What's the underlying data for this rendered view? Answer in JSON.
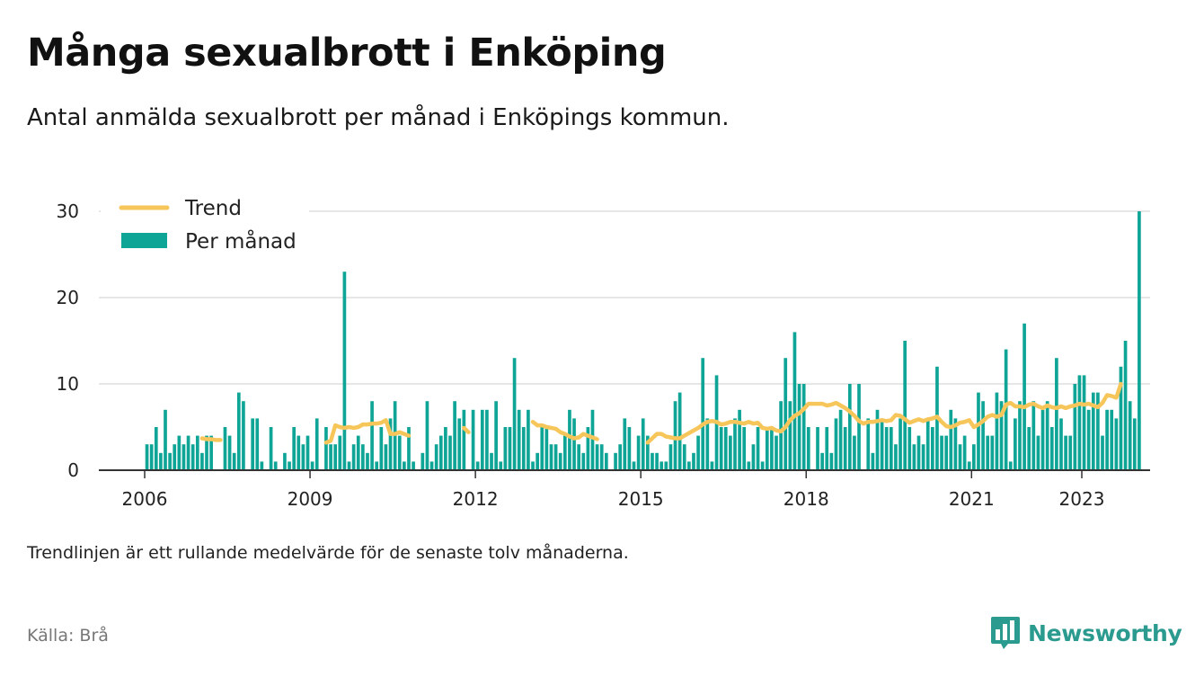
{
  "title": "Många sexualbrott i Enköping",
  "subtitle": "Antal anmälda sexualbrott per månad i Enköpings kommun.",
  "note": "Trendlinjen är ett rullande medelvärde för de senaste tolv månaderna.",
  "source": "Källa: Brå",
  "brand": {
    "name": "Newsworthy",
    "color": "#2b9a8f",
    "icon": "bar-chart-speech-bubble-icon"
  },
  "colors": {
    "bar": "#0fa596",
    "trend": "#f7c65a",
    "grid": "#dddddd",
    "axis": "#333333"
  },
  "chart_data": {
    "type": "bar",
    "start": "2006-01",
    "x_ticks": [
      "2006",
      "2009",
      "2012",
      "2015",
      "2018",
      "2021",
      "2023"
    ],
    "y_ticks": [
      0,
      10,
      20,
      30
    ],
    "ylim": [
      0,
      30
    ],
    "grid": true,
    "legend_position": "top-left",
    "series": [
      {
        "name": "Per månad",
        "type": "bar",
        "values": [
          3,
          3,
          5,
          2,
          7,
          2,
          3,
          4,
          3,
          4,
          3,
          4,
          2,
          4,
          4,
          0,
          0,
          5,
          4,
          2,
          9,
          8,
          0,
          6,
          6,
          1,
          0,
          5,
          1,
          0,
          2,
          1,
          5,
          4,
          3,
          4,
          1,
          6,
          0,
          5,
          3,
          3,
          4,
          23,
          1,
          3,
          4,
          3,
          2,
          8,
          1,
          5,
          3,
          6,
          8,
          4,
          1,
          5,
          1,
          0,
          2,
          8,
          1,
          3,
          4,
          5,
          4,
          8,
          6,
          7,
          0,
          7,
          1,
          7,
          7,
          2,
          8,
          1,
          5,
          5,
          13,
          7,
          5,
          7,
          1,
          2,
          5,
          5,
          3,
          3,
          2,
          4,
          7,
          6,
          3,
          2,
          5,
          7,
          3,
          3,
          2,
          0,
          2,
          3,
          6,
          5,
          1,
          4,
          6,
          4,
          2,
          2,
          1,
          1,
          3,
          8,
          9,
          3,
          1,
          2,
          4,
          13,
          6,
          1,
          11,
          5,
          5,
          4,
          6,
          7,
          5,
          1,
          3,
          5,
          1,
          5,
          5,
          4,
          8,
          13,
          8,
          16,
          10,
          10,
          5,
          0,
          5,
          2,
          5,
          2,
          6,
          7,
          5,
          10,
          4,
          10,
          0,
          6,
          2,
          7,
          6,
          5,
          5,
          3,
          6,
          15,
          5,
          3,
          4,
          3,
          6,
          5,
          12,
          4,
          4,
          7,
          6,
          3,
          4,
          1,
          3,
          9,
          8,
          4,
          4,
          9,
          8,
          14,
          1,
          6,
          8,
          17,
          5,
          8,
          4,
          7,
          8,
          5,
          13,
          6,
          4,
          4,
          10,
          11,
          11,
          7,
          9,
          9,
          4,
          7,
          7,
          6,
          12,
          15,
          8,
          6,
          30
        ]
      },
      {
        "name": "Trend",
        "type": "line",
        "segments": [
          {
            "start": "2007-01",
            "values": [
              3.7,
              3.6,
              3.6,
              3.5,
              3.5
            ]
          },
          {
            "start": "2009-04",
            "values": [
              3.2,
              3.4,
              5.2,
              5.0,
              4.9,
              5.0,
              4.9,
              5.0,
              5.3,
              5.3,
              5.4,
              5.4,
              5.5,
              5.8,
              4.2,
              4.2,
              4.4,
              4.2,
              4.0
            ]
          },
          {
            "start": "2011-10",
            "values": [
              4.9,
              4.4
            ]
          },
          {
            "start": "2013-01",
            "values": [
              5.6,
              5.2,
              5.2,
              5.0,
              4.9,
              4.8,
              4.4,
              4.2,
              3.9,
              3.7,
              3.8,
              4.2,
              4.0,
              3.8,
              3.6
            ]
          },
          {
            "start": "2015-02",
            "values": [
              3.2,
              3.7,
              4.2,
              4.2,
              3.9,
              3.8,
              3.7,
              3.7,
              4.0,
              4.3,
              4.6,
              4.9,
              5.3,
              5.6,
              5.7,
              5.6,
              5.3,
              5.4,
              5.6,
              5.6,
              5.5,
              5.4,
              5.6,
              5.4,
              5.5,
              4.9,
              4.8,
              4.9,
              4.6,
              4.5,
              5.0,
              5.8,
              6.3,
              6.6,
              7.1,
              7.7,
              7.7,
              7.7,
              7.7,
              7.5,
              7.6,
              7.8,
              7.5,
              7.2,
              6.8,
              6.3,
              5.7,
              5.4,
              5.6,
              5.6,
              5.7,
              5.8,
              5.7,
              5.8,
              6.4,
              6.3,
              5.9,
              5.5,
              5.7,
              5.9,
              5.7,
              5.9,
              6.0,
              6.2,
              5.6,
              5.1,
              5.0,
              5.2,
              5.5,
              5.6,
              5.8,
              5.0,
              5.3,
              5.7,
              6.2,
              6.4,
              6.2,
              6.4,
              7.6,
              7.8,
              7.4,
              7.4,
              7.3,
              7.6,
              7.7,
              7.4,
              7.2,
              7.5,
              7.3,
              7.2,
              7.4,
              7.2,
              7.4,
              7.5,
              7.7,
              7.6,
              7.7,
              7.5,
              7.3,
              7.8,
              8.7,
              8.6,
              8.4,
              10.0
            ]
          }
        ]
      }
    ]
  }
}
